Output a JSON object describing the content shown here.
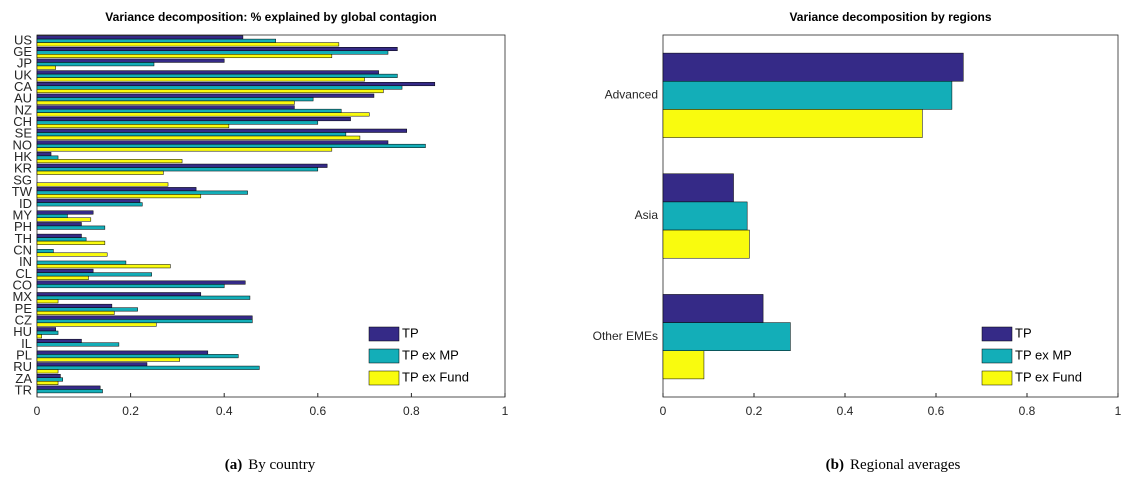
{
  "chart_data": [
    {
      "type": "bar",
      "orientation": "horizontal",
      "title": "Variance decomposition: % explained by global contagion",
      "caption_label": "(a)",
      "caption": "By country",
      "categories": [
        "US",
        "GE",
        "JP",
        "UK",
        "CA",
        "AU",
        "NZ",
        "CH",
        "SE",
        "NO",
        "HK",
        "KR",
        "SG",
        "TW",
        "ID",
        "MY",
        "PH",
        "TH",
        "CN",
        "IN",
        "CL",
        "CO",
        "MX",
        "PE",
        "CZ",
        "HU",
        "IL",
        "PL",
        "RU",
        "ZA",
        "TR"
      ],
      "series": [
        {
          "name": "TP",
          "color": "#352a87",
          "values": [
            0.44,
            0.77,
            0.4,
            0.73,
            0.85,
            0.72,
            0.55,
            0.67,
            0.79,
            0.75,
            0.03,
            0.62,
            0,
            0.34,
            0.22,
            0.12,
            0.095,
            0.095,
            0,
            0,
            0.12,
            0.445,
            0.35,
            0.16,
            0.46,
            0.04,
            0.095,
            0.365,
            0.235,
            0.05,
            0.135
          ]
        },
        {
          "name": "TP ex MP",
          "color": "#13aeb8",
          "values": [
            0.51,
            0.75,
            0.25,
            0.77,
            0.78,
            0.59,
            0.65,
            0.6,
            0.66,
            0.83,
            0.045,
            0.6,
            0,
            0.45,
            0.225,
            0.065,
            0.145,
            0.105,
            0.035,
            0.19,
            0.245,
            0.4,
            0.455,
            0.215,
            0.46,
            0.045,
            0.175,
            0.43,
            0.475,
            0.055,
            0.14
          ]
        },
        {
          "name": "TP ex Fund",
          "color": "#f9fb0e",
          "values": [
            0.645,
            0.63,
            0.04,
            0.7,
            0.74,
            0.55,
            0.71,
            0.41,
            0.69,
            0.63,
            0.31,
            0.27,
            0.28,
            0.35,
            0,
            0.115,
            0,
            0.145,
            0.15,
            0.285,
            0.11,
            0,
            0.045,
            0.165,
            0.255,
            0.01,
            0,
            0.305,
            0.045,
            0.045,
            0
          ]
        }
      ],
      "xlim": [
        0,
        1
      ],
      "xticks": [
        0,
        0.2,
        0.4,
        0.6,
        0.8,
        1
      ],
      "legend": "lower right"
    },
    {
      "type": "bar",
      "orientation": "horizontal",
      "title": "Variance decomposition by regions",
      "caption_label": "(b)",
      "caption": "Regional averages",
      "categories": [
        "Advanced",
        "Asia",
        "Other EMEs"
      ],
      "series": [
        {
          "name": "TP",
          "color": "#352a87",
          "values": [
            0.66,
            0.155,
            0.22
          ]
        },
        {
          "name": "TP ex MP",
          "color": "#13aeb8",
          "values": [
            0.635,
            0.185,
            0.28
          ]
        },
        {
          "name": "TP ex Fund",
          "color": "#f9fb0e",
          "values": [
            0.57,
            0.19,
            0.09
          ]
        }
      ],
      "xlim": [
        0,
        1
      ],
      "xticks": [
        0,
        0.2,
        0.4,
        0.6,
        0.8,
        1
      ],
      "legend": "lower right"
    }
  ]
}
